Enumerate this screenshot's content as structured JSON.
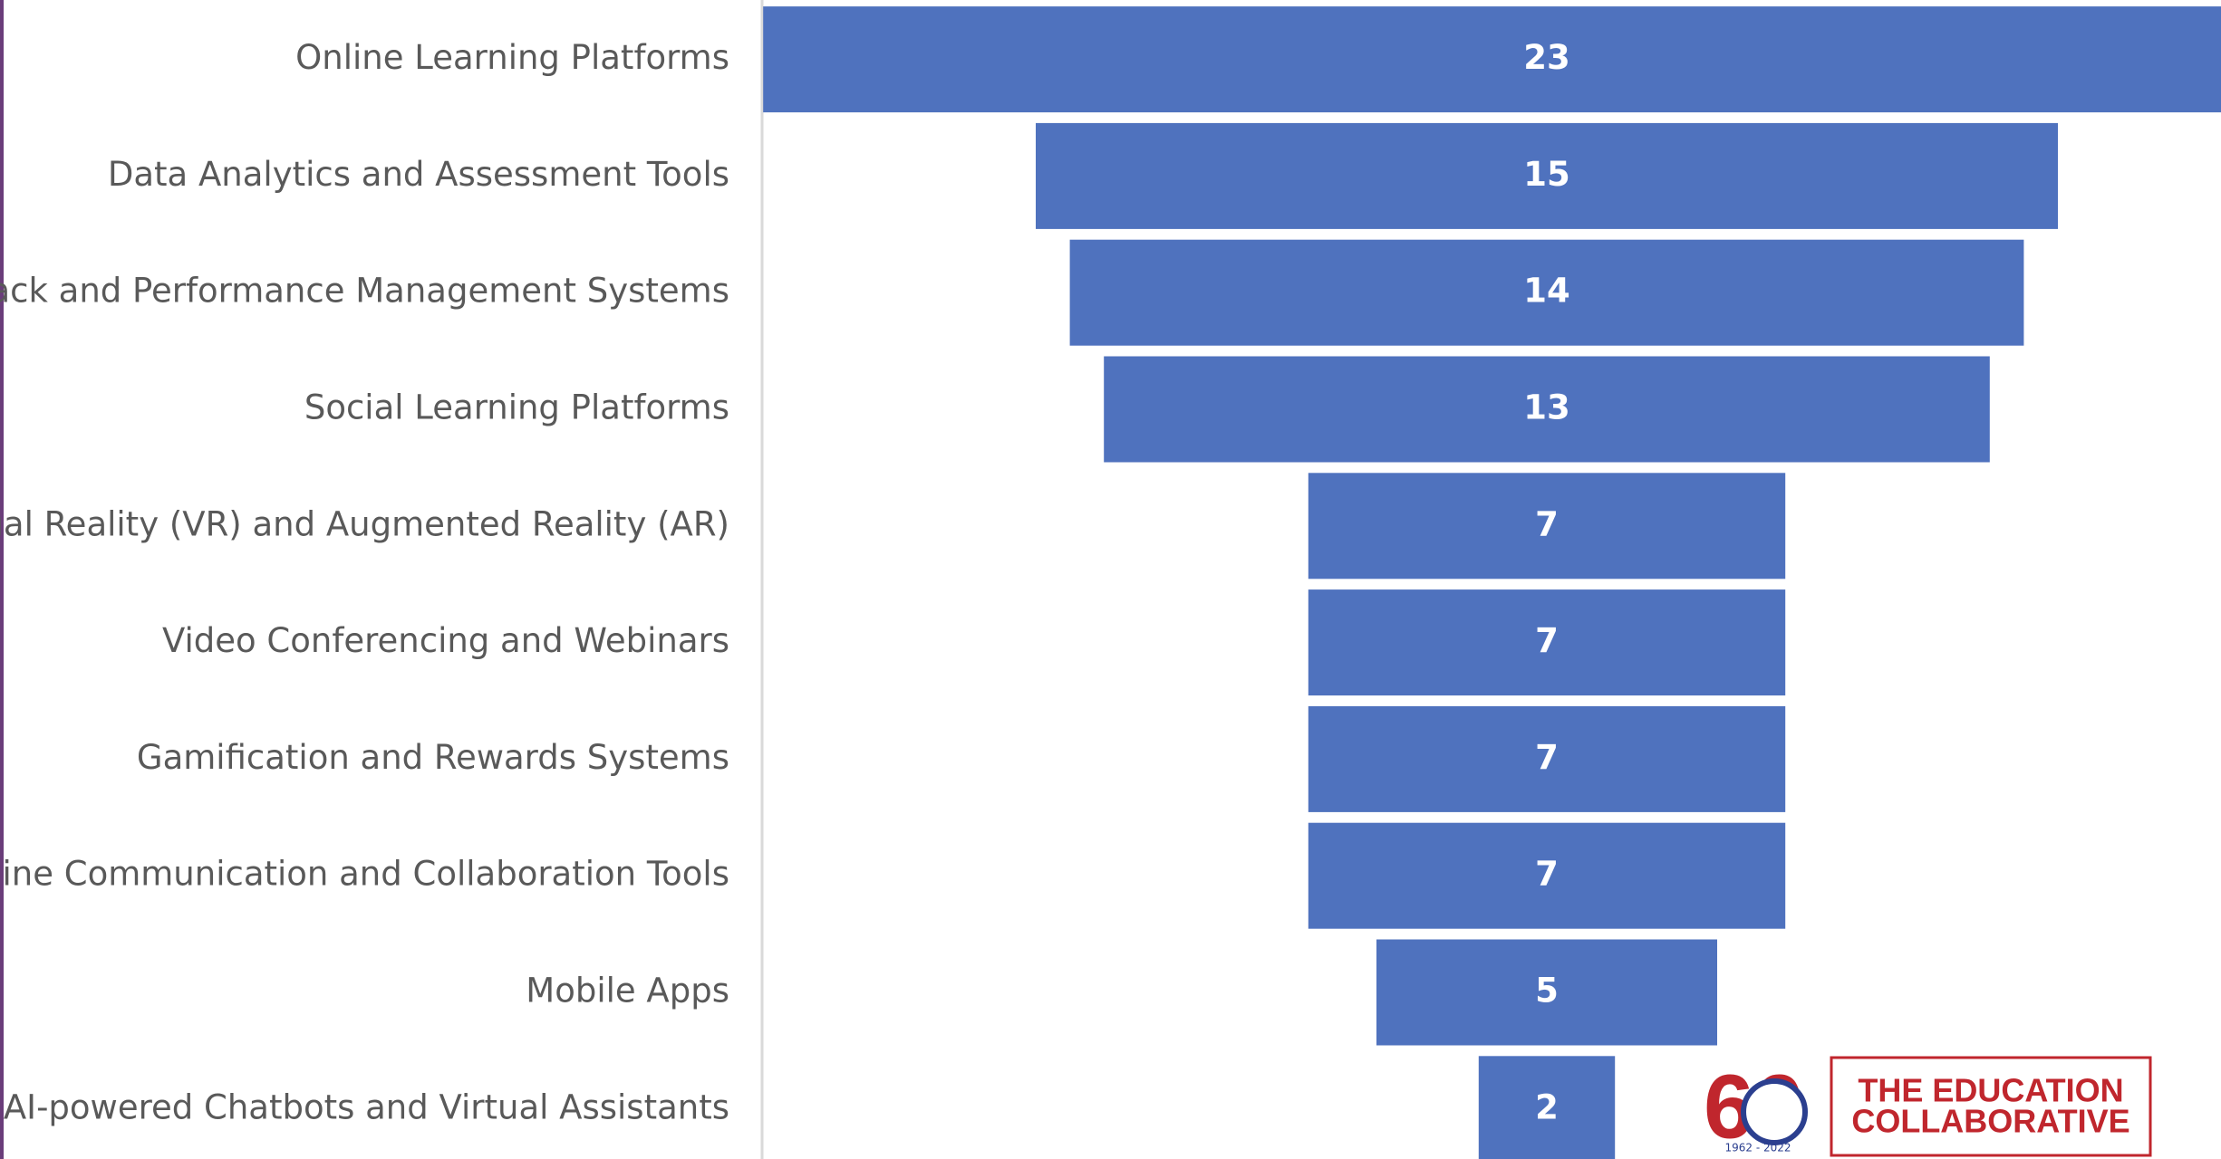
{
  "chart_data": {
    "type": "funnel",
    "categories": [
      "Online Learning Platforms",
      "Data Analytics and Assessment Tools",
      "back and Performance Management Systems",
      "Social Learning Platforms",
      "tual Reality (VR) and Augmented Reality (AR)",
      "Video Conferencing and Webinars",
      "Gamification and Rewards Systems",
      "line Communication and Collaboration Tools",
      "Mobile Apps",
      "AI-powered Chatbots and Virtual Assistants"
    ],
    "values": [
      23,
      15,
      14,
      13,
      7,
      7,
      7,
      7,
      5,
      2
    ],
    "color": "#4f72be"
  },
  "logo": {
    "badge": "60",
    "years": "1962 - 2022",
    "lines": [
      "THE EDUCATION",
      "COLLABORATIVE"
    ]
  }
}
